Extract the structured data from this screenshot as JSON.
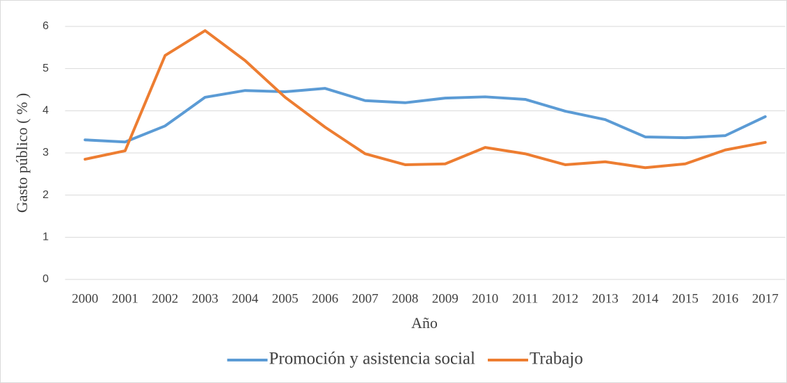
{
  "chart_data": {
    "type": "line",
    "x_label": "Año",
    "y_label": "Gasto público ( % )",
    "categories": [
      "2000",
      "2001",
      "2002",
      "2003",
      "2004",
      "2005",
      "2006",
      "2007",
      "2008",
      "2009",
      "2010",
      "2011",
      "2012",
      "2013",
      "2014",
      "2015",
      "2016",
      "2017"
    ],
    "series": [
      {
        "name": "Promoción y asistencia social",
        "color": "#5b9bd5",
        "values": [
          3.31,
          3.26,
          3.64,
          4.32,
          4.48,
          4.45,
          4.53,
          4.24,
          4.19,
          4.3,
          4.33,
          4.27,
          3.99,
          3.79,
          3.38,
          3.36,
          3.41,
          3.86
        ]
      },
      {
        "name": "Trabajo",
        "color": "#ed7d31",
        "values": [
          2.85,
          3.05,
          5.31,
          5.9,
          5.19,
          4.32,
          3.61,
          2.98,
          2.72,
          2.74,
          3.13,
          2.98,
          2.72,
          2.79,
          2.65,
          2.74,
          3.07,
          3.25
        ]
      }
    ],
    "ylim": [
      0,
      6
    ],
    "yticks": [
      0,
      1,
      2,
      3,
      4,
      5,
      6
    ],
    "grid": true,
    "legend": "bottom"
  }
}
